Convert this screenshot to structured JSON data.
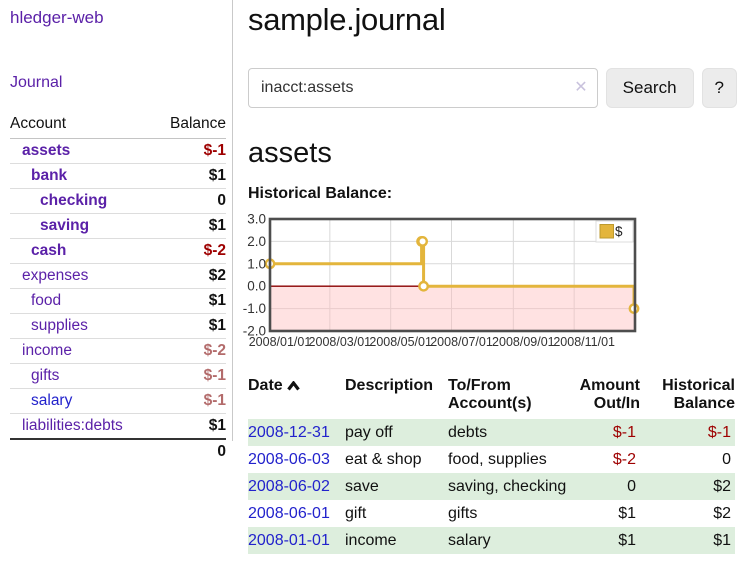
{
  "brand": "hledger-web",
  "nav": {
    "journal": "Journal"
  },
  "sidebar": {
    "account_header": "Account",
    "balance_header": "Balance",
    "rows": [
      {
        "name": "assets",
        "balance": "$-1",
        "level": 1,
        "bold": true,
        "negative": true,
        "muted": false,
        "blue": false
      },
      {
        "name": "bank",
        "balance": "$1",
        "level": 2,
        "bold": true,
        "negative": false,
        "muted": false,
        "blue": false
      },
      {
        "name": "checking",
        "balance": "0",
        "level": 3,
        "bold": true,
        "negative": false,
        "muted": false,
        "blue": false
      },
      {
        "name": "saving",
        "balance": "$1",
        "level": 3,
        "bold": true,
        "negative": false,
        "muted": false,
        "blue": false
      },
      {
        "name": "cash",
        "balance": "$-2",
        "level": 2,
        "bold": true,
        "negative": true,
        "muted": false,
        "blue": false
      },
      {
        "name": "expenses",
        "balance": "$2",
        "level": 1,
        "bold": false,
        "negative": false,
        "muted": false,
        "blue": false
      },
      {
        "name": "food",
        "balance": "$1",
        "level": 2,
        "bold": false,
        "negative": false,
        "muted": false,
        "blue": false
      },
      {
        "name": "supplies",
        "balance": "$1",
        "level": 2,
        "bold": false,
        "negative": false,
        "muted": false,
        "blue": false
      },
      {
        "name": "income",
        "balance": "$-2",
        "level": 1,
        "bold": false,
        "negative": false,
        "muted": true,
        "blue": false
      },
      {
        "name": "gifts",
        "balance": "$-1",
        "level": 2,
        "bold": false,
        "negative": false,
        "muted": true,
        "blue": false
      },
      {
        "name": "salary",
        "balance": "$-1",
        "level": 2,
        "bold": false,
        "negative": false,
        "muted": true,
        "blue": true
      },
      {
        "name": "liabilities:debts",
        "balance": "$1",
        "level": 1,
        "bold": false,
        "negative": false,
        "muted": false,
        "blue": false
      }
    ],
    "total": "0"
  },
  "header": {
    "title": "sample.journal"
  },
  "search": {
    "value": "inacct:assets",
    "clear_icon": "✕",
    "button": "Search",
    "help": "?"
  },
  "account_page": {
    "title": "assets",
    "chart_label": "Historical Balance:"
  },
  "chart_data": {
    "type": "line",
    "title": "Historical Balance",
    "legend": "$",
    "legend_position": "top-right",
    "grid": true,
    "x_range": [
      "2008-01-01",
      "2009-01-01"
    ],
    "x_ticks": [
      {
        "date": "2008-01-01",
        "label": "2008/01/01"
      },
      {
        "date": "2008-03-01",
        "label": "2008/03/01"
      },
      {
        "date": "2008-05-01",
        "label": "2008/05/01"
      },
      {
        "date": "2008-07-01",
        "label": "2008/07/01"
      },
      {
        "date": "2008-09-01",
        "label": "2008/09/01"
      },
      {
        "date": "2008-11-01",
        "label": "2008/11/01"
      }
    ],
    "y_ticks": [
      {
        "v": 3,
        "label": "3.0"
      },
      {
        "v": 2,
        "label": "2.0"
      },
      {
        "v": 1,
        "label": "1.0"
      },
      {
        "v": 0,
        "label": "0.0"
      },
      {
        "v": -1,
        "label": "-1.0"
      },
      {
        "v": -2,
        "label": "-2.0"
      }
    ],
    "ylim": [
      -2,
      3
    ],
    "series": [
      {
        "name": "$",
        "points": [
          {
            "date": "2008-01-01",
            "value": 1
          },
          {
            "date": "2008-06-01",
            "value": 2
          },
          {
            "date": "2008-06-02",
            "value": 2
          },
          {
            "date": "2008-06-03",
            "value": 0
          },
          {
            "date": "2008-12-31",
            "value": -1
          }
        ]
      }
    ],
    "line_color": "#e3b53c",
    "marker_fill": "#ffffff",
    "negative_region_color": "#ffb9b9",
    "zero_line_color": "#8b0000",
    "grid_color": "#d9d9d9",
    "border_color": "#4d4d4d"
  },
  "register": {
    "columns": [
      "Date",
      "Description",
      "To/From Account(s)",
      "Amount Out/In",
      "Historical Balance"
    ],
    "sort": "ascending",
    "rows": [
      {
        "date": "2008-12-31",
        "description": "pay off",
        "accounts": "debts",
        "amount": "$-1",
        "balance": "$-1",
        "amount_negative": true,
        "balance_negative": true
      },
      {
        "date": "2008-06-03",
        "description": "eat & shop",
        "accounts": "food, supplies",
        "amount": "$-2",
        "balance": "0",
        "amount_negative": true,
        "balance_negative": false
      },
      {
        "date": "2008-06-02",
        "description": "save",
        "accounts": "saving, checking",
        "amount": "0",
        "balance": "$2",
        "amount_negative": false,
        "balance_negative": false
      },
      {
        "date": "2008-06-01",
        "description": "gift",
        "accounts": "gifts",
        "amount": "$1",
        "balance": "$2",
        "amount_negative": false,
        "balance_negative": false
      },
      {
        "date": "2008-01-01",
        "description": "income",
        "accounts": "salary",
        "amount": "$1",
        "balance": "$1",
        "amount_negative": false,
        "balance_negative": false
      }
    ]
  }
}
